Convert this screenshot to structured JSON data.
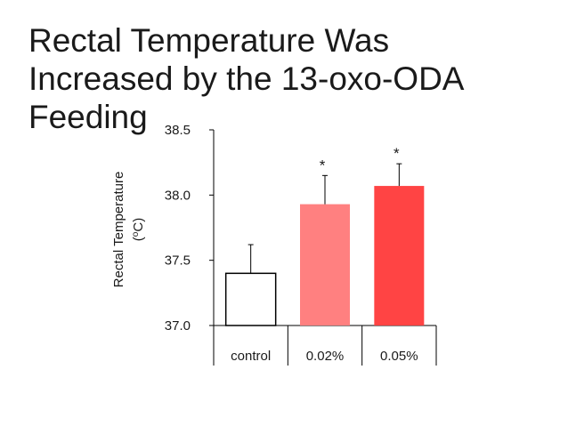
{
  "slide": {
    "title_lines": [
      "Rectal Temperature Was",
      "Increased by the 13-oxo-ODA",
      "Feeding"
    ]
  },
  "chart_data": {
    "type": "bar",
    "categories": [
      "control",
      "0.02%",
      "0.05%"
    ],
    "values": [
      37.4,
      37.93,
      38.07
    ],
    "error": [
      0.22,
      0.22,
      0.17
    ],
    "significance": [
      "",
      "*",
      "*"
    ],
    "colors": [
      "#ffffff",
      "#ff8080",
      "#ff4444"
    ],
    "ylabel_line1": "Rectal Temperature",
    "ylabel_unit_pre": "(",
    "ylabel_unit_sup": "o",
    "ylabel_unit_post": "C)",
    "ylim": [
      37.0,
      38.5
    ],
    "yticks": [
      37.0,
      37.5,
      38.0,
      38.5
    ],
    "ytick_labels": [
      "37.0",
      "37.5",
      "38.0",
      "38.5"
    ],
    "grid": false
  }
}
